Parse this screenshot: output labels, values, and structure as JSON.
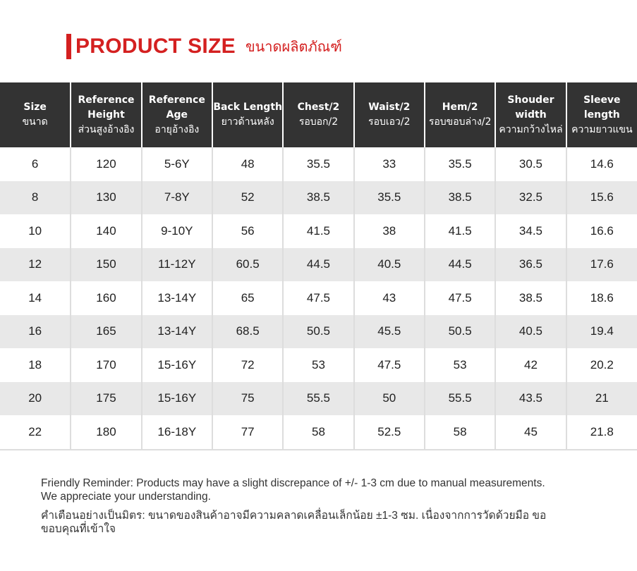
{
  "header": {
    "title": "PRODUCT SIZE",
    "title_th": "ขนาดผลิตภัณฑ์"
  },
  "table": {
    "columns": [
      [
        "Size",
        "ขนาด"
      ],
      [
        "Reference",
        "Height",
        "ส่วนสูงอ้างอิง"
      ],
      [
        "Reference",
        "Age",
        "อายุอ้างอิง"
      ],
      [
        "Back Length",
        "ยาวด้านหลัง"
      ],
      [
        "Chest/2",
        "รอบอก/2"
      ],
      [
        "Waist/2",
        "รอบเอว/2"
      ],
      [
        "Hem/2",
        "รอบขอบล่าง/2"
      ],
      [
        "Shouder",
        "width",
        "ความกว้างไหล่"
      ],
      [
        "Sleeve",
        "length",
        "ความยาวแขน"
      ]
    ],
    "rows": [
      [
        "6",
        "120",
        "5-6Y",
        "48",
        "35.5",
        "33",
        "35.5",
        "30.5",
        "14.6"
      ],
      [
        "8",
        "130",
        "7-8Y",
        "52",
        "38.5",
        "35.5",
        "38.5",
        "32.5",
        "15.6"
      ],
      [
        "10",
        "140",
        "9-10Y",
        "56",
        "41.5",
        "38",
        "41.5",
        "34.5",
        "16.6"
      ],
      [
        "12",
        "150",
        "11-12Y",
        "60.5",
        "44.5",
        "40.5",
        "44.5",
        "36.5",
        "17.6"
      ],
      [
        "14",
        "160",
        "13-14Y",
        "65",
        "47.5",
        "43",
        "47.5",
        "38.5",
        "18.6"
      ],
      [
        "16",
        "165",
        "13-14Y",
        "68.5",
        "50.5",
        "45.5",
        "50.5",
        "40.5",
        "19.4"
      ],
      [
        "18",
        "170",
        "15-16Y",
        "72",
        "53",
        "47.5",
        "53",
        "42",
        "20.2"
      ],
      [
        "20",
        "175",
        "15-16Y",
        "75",
        "55.5",
        "50",
        "55.5",
        "43.5",
        "21"
      ],
      [
        "22",
        "180",
        "16-18Y",
        "77",
        "58",
        "52.5",
        "58",
        "45",
        "21.8"
      ]
    ]
  },
  "notes": [
    [
      "Friendly Reminder: Products may have a slight discrepance of +/- 1-3 cm due to manual measurements.",
      "We appreciate your understanding."
    ],
    [
      "คำเตือนอย่างเป็นมิตร: ขนาดของสินค้าอาจมีความคลาดเคลื่อนเล็กน้อย ±1-3 ซม. เนื่องจากการวัดด้วยมือ ขอ",
      "ขอบคุณที่เข้าใจ"
    ]
  ]
}
